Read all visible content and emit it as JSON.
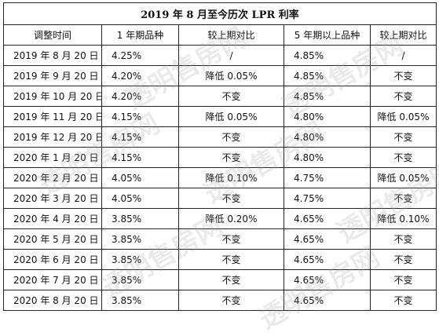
{
  "title": "2019 年 8 月至今历次 LPR 利率",
  "headers": [
    "调整时间",
    "1 年期品种",
    "较上期对比",
    "5 年期以上品种",
    "较上期对比"
  ],
  "rows": [
    [
      "2019 年 8 月 20 日",
      "4.25%",
      "/",
      "4.85%",
      "/"
    ],
    [
      "2019 年 9 月 20 日",
      "4.20%",
      "降低 0.05%",
      "4.85%",
      "不变"
    ],
    [
      "2019 年 10 月 20 日",
      "4.20%",
      "不变",
      "4.85%",
      "不变"
    ],
    [
      "2019 年 11 月 20 日",
      "4.15%",
      "降低 0.05%",
      "4.80%",
      "降低 0.05%"
    ],
    [
      "2019 年 12 月 20 日",
      "4.15%",
      "不变",
      "4.80%",
      "不变"
    ],
    [
      "2020 年 1 月 20 日",
      "4.15%",
      "不变",
      "4.80%",
      "不变"
    ],
    [
      "2020 年 2 月 20 日",
      "4.05%",
      "降低 0.10%",
      "4.75%",
      "降低 0.05%"
    ],
    [
      "2020 年 3 月 20 日",
      "4.05%",
      "不变",
      "4.75%",
      "不变"
    ],
    [
      "2020 年 4 月 20 日",
      "3.85%",
      "降低 0.20%",
      "4.65%",
      "降低 0.10%"
    ],
    [
      "2020 年 5 月 20 日",
      "3.85%",
      "不变",
      "4.65%",
      "不变"
    ],
    [
      "2020 年 6 月 20 日",
      "3.85%",
      "不变",
      "4.65%",
      "不变"
    ],
    [
      "2020 年 7 月 20 日",
      "3.85%",
      "不变",
      "4.65%",
      "不变"
    ],
    [
      "2020 年 8 月 20 日",
      "3.85%",
      "不变",
      "4.65%",
      "不变"
    ]
  ],
  "watermark": "透明售房网"
}
